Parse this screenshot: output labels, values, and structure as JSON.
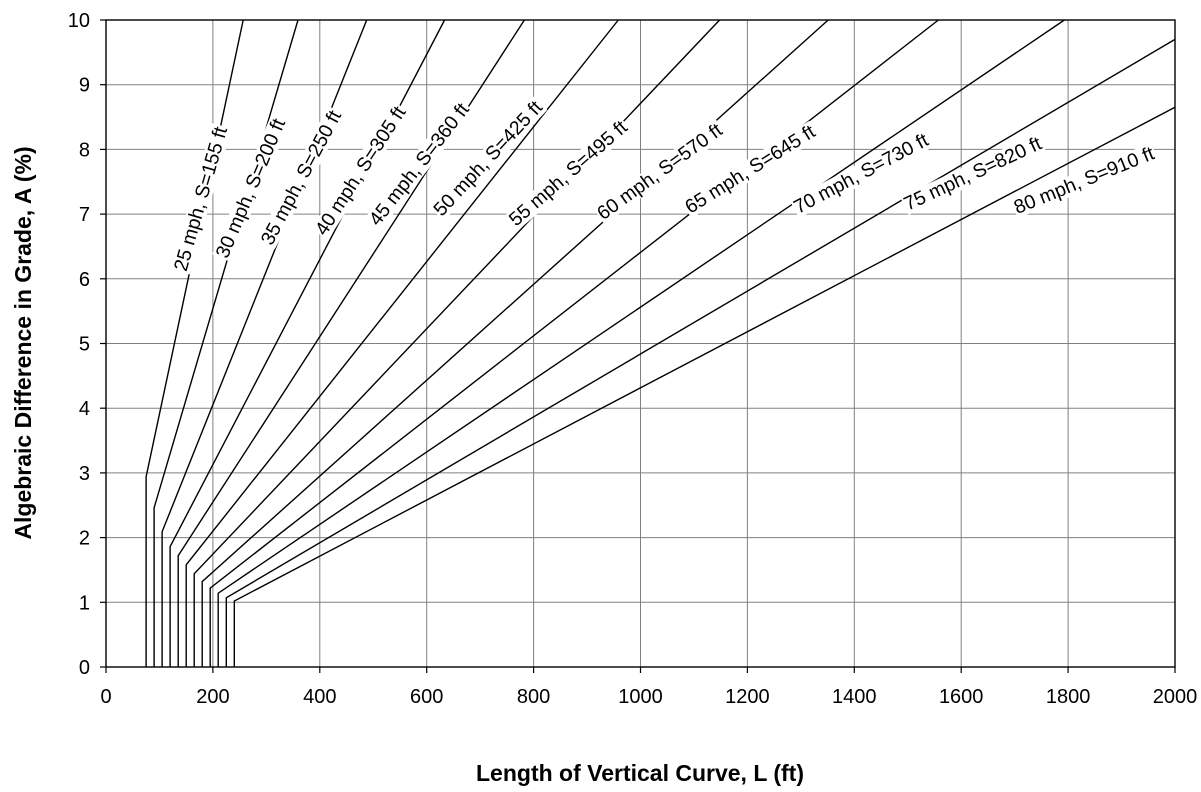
{
  "chart_data": {
    "type": "line",
    "title": "",
    "xlabel": "Length of Vertical Curve, L (ft)",
    "ylabel": "Algebraic Difference in Grade, A (%)",
    "xlim": [
      0,
      2000
    ],
    "ylim": [
      0,
      10
    ],
    "x_ticks": [
      "0",
      "200",
      "400",
      "600",
      "800",
      "1000",
      "1200",
      "1400",
      "1600",
      "1800",
      "2000"
    ],
    "y_ticks": [
      "0",
      "1",
      "2",
      "3",
      "4",
      "5",
      "6",
      "7",
      "8",
      "9",
      "10"
    ],
    "grid": true,
    "series": [
      {
        "name": "25 mph, S=155 ft",
        "x": [
          75,
          75,
          256.7
        ],
        "y": [
          0,
          2.94,
          10
        ]
      },
      {
        "name": "30 mph, S=200 ft",
        "x": [
          90,
          90,
          359.3
        ],
        "y": [
          0,
          2.46,
          10
        ]
      },
      {
        "name": "35 mph, S=250 ft",
        "x": [
          105,
          105,
          487.8
        ],
        "y": [
          0,
          2.09,
          10
        ]
      },
      {
        "name": "40 mph, S=305 ft",
        "x": [
          120,
          120,
          633.4
        ],
        "y": [
          0,
          1.86,
          10
        ]
      },
      {
        "name": "45 mph, S=360 ft",
        "x": [
          135,
          135,
          782.8
        ],
        "y": [
          0,
          1.72,
          10
        ]
      },
      {
        "name": "50 mph, S=425 ft",
        "x": [
          150,
          150,
          958.5
        ],
        "y": [
          0,
          1.58,
          10
        ]
      },
      {
        "name": "55 mph, S=495 ft",
        "x": [
          165,
          165,
          1147.9
        ],
        "y": [
          0,
          1.44,
          10
        ]
      },
      {
        "name": "60 mph, S=570 ft",
        "x": [
          180,
          180,
          1351.2
        ],
        "y": [
          0,
          1.32,
          10
        ]
      },
      {
        "name": "65 mph, S=645 ft",
        "x": [
          195,
          195,
          1557.4
        ],
        "y": [
          0,
          1.22,
          10
        ]
      },
      {
        "name": "70 mph, S=730 ft",
        "x": [
          210,
          210,
          1793.1
        ],
        "y": [
          0,
          1.14,
          10
        ]
      },
      {
        "name": "75 mph, S=820 ft",
        "x": [
          225,
          225,
          2000
        ],
        "y": [
          0,
          1.07,
          9.7
        ]
      },
      {
        "name": "80 mph, S=910 ft",
        "x": [
          240,
          240,
          2000
        ],
        "y": [
          0,
          1.02,
          8.65
        ]
      }
    ],
    "labels": [
      {
        "text": "25 mph, S=155 ft",
        "x": 150,
        "y": 6.1
      },
      {
        "text": "30 mph, S=200 ft",
        "x": 227,
        "y": 6.3
      },
      {
        "text": "35 mph, S=250 ft",
        "x": 310,
        "y": 6.5
      },
      {
        "text": "40 mph, S=305 ft",
        "x": 410,
        "y": 6.65
      },
      {
        "text": "45 mph, S=360 ft",
        "x": 509,
        "y": 6.8
      },
      {
        "text": "50 mph, S=425 ft",
        "x": 628,
        "y": 6.95
      },
      {
        "text": "55 mph, S=495 ft",
        "x": 767,
        "y": 6.8
      },
      {
        "text": "60 mph, S=570 ft",
        "x": 930,
        "y": 6.9
      },
      {
        "text": "65 mph, S=645 ft",
        "x": 1093,
        "y": 7.0
      },
      {
        "text": "70 mph, S=730 ft",
        "x": 1295,
        "y": 7.0
      },
      {
        "text": "75 mph, S=820 ft",
        "x": 1500,
        "y": 7.05
      },
      {
        "text": "80 mph, S=910 ft",
        "x": 1705,
        "y": 7.0
      }
    ],
    "label_angles": [
      -74,
      -67,
      -62,
      -57,
      -52,
      -47,
      -41,
      -36,
      -32,
      -28,
      -25,
      -22
    ]
  }
}
